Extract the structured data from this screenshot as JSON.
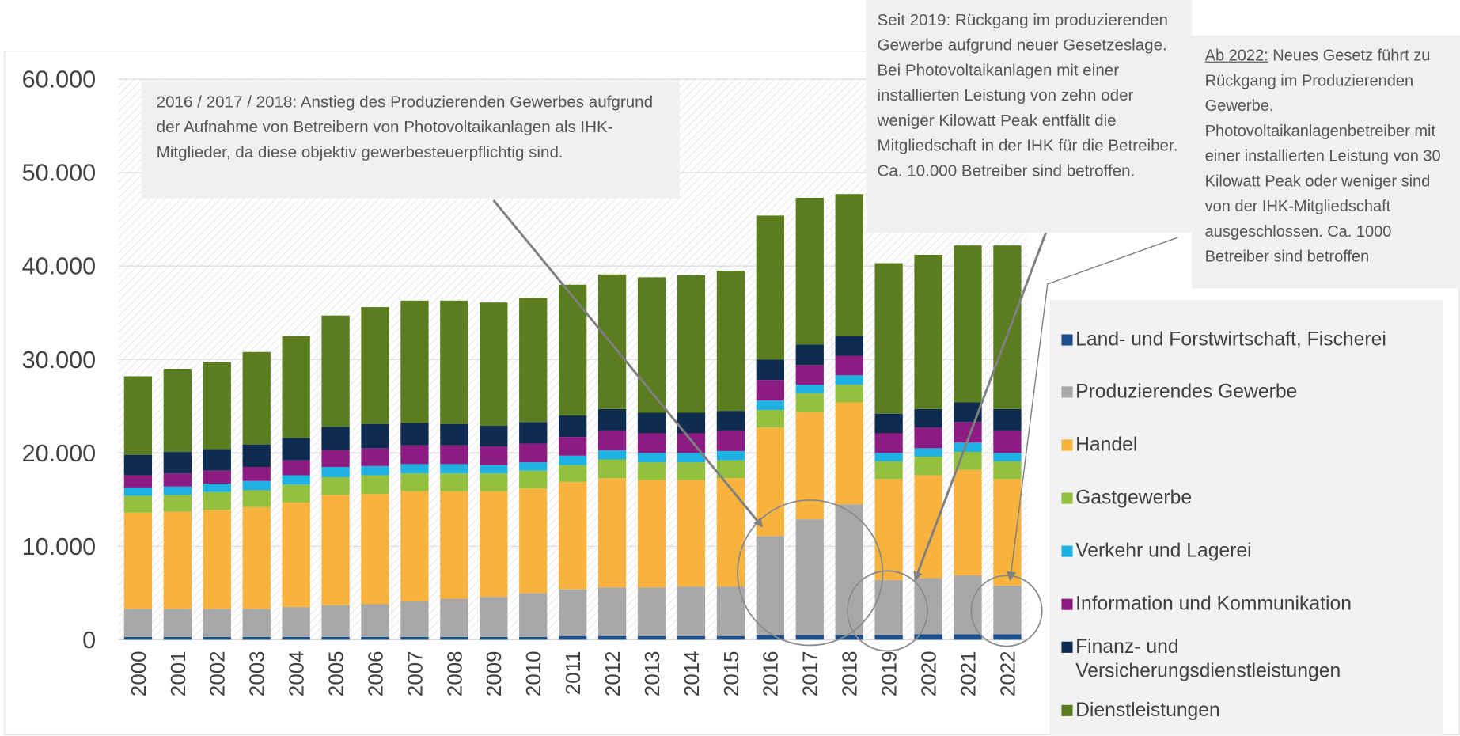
{
  "chart_data": {
    "type": "stacked_bar",
    "categories": [
      "2000",
      "2001",
      "2002",
      "2003",
      "2004",
      "2005",
      "2006",
      "2007",
      "2008",
      "2009",
      "2010",
      "2011",
      "2012",
      "2013",
      "2014",
      "2015",
      "2016",
      "2017",
      "2018",
      "2019",
      "2020",
      "2021",
      "2022"
    ],
    "series": [
      {
        "name": "Land- und Forstwirtschaft, Fischerei",
        "color": "#1c4f8c",
        "values": [
          300,
          300,
          300,
          300,
          300,
          300,
          300,
          300,
          300,
          300,
          300,
          400,
          400,
          400,
          400,
          400,
          500,
          500,
          500,
          500,
          600,
          600,
          600
        ]
      },
      {
        "name": "Produzierendes Gewerbe",
        "color": "#a8a8a8",
        "values": [
          3000,
          3000,
          3000,
          3000,
          3200,
          3400,
          3500,
          3800,
          4100,
          4300,
          4700,
          5000,
          5200,
          5200,
          5300,
          5300,
          10600,
          12400,
          14000,
          5900,
          6000,
          6300,
          5200
        ]
      },
      {
        "name": "Handel",
        "color": "#f7b33d",
        "values": [
          10300,
          10400,
          10600,
          10900,
          11200,
          11800,
          11800,
          11800,
          11500,
          11300,
          11200,
          11500,
          11700,
          11500,
          11400,
          11600,
          11600,
          11500,
          10900,
          10800,
          11000,
          11300,
          11400
        ]
      },
      {
        "name": "Gastgewerbe",
        "color": "#93c13f",
        "values": [
          1800,
          1800,
          1900,
          1800,
          1900,
          1900,
          2000,
          1900,
          1900,
          1900,
          1900,
          1800,
          2000,
          1900,
          1900,
          1900,
          1900,
          2000,
          1900,
          1900,
          2000,
          1900,
          1900
        ]
      },
      {
        "name": "Verkehr und Lagerei",
        "color": "#1fb1e2",
        "values": [
          900,
          900,
          900,
          1000,
          1000,
          1100,
          1000,
          1000,
          1000,
          900,
          900,
          1000,
          1000,
          1000,
          1000,
          1000,
          1000,
          900,
          1000,
          900,
          900,
          1000,
          900
        ]
      },
      {
        "name": "Information und Kommunikation",
        "color": "#8c1c82",
        "values": [
          1300,
          1400,
          1400,
          1500,
          1600,
          1800,
          1900,
          2000,
          2000,
          2000,
          2000,
          2000,
          2100,
          2100,
          2100,
          2200,
          2200,
          2100,
          2100,
          2100,
          2200,
          2200,
          2400
        ]
      },
      {
        "name": "Finanz- und Versicherungsdienstleistungen",
        "color": "#0e2b50",
        "values": [
          2200,
          2300,
          2300,
          2400,
          2400,
          2500,
          2600,
          2400,
          2300,
          2200,
          2300,
          2300,
          2300,
          2200,
          2200,
          2100,
          2200,
          2200,
          2100,
          2100,
          2000,
          2100,
          2300
        ]
      },
      {
        "name": "Dienstleistungen",
        "color": "#5b7c1f",
        "values": [
          8400,
          8900,
          9300,
          9900,
          10900,
          11900,
          12500,
          13100,
          13200,
          13200,
          13300,
          14000,
          14400,
          14500,
          14700,
          15000,
          15400,
          15700,
          15200,
          16100,
          16500,
          16800,
          17500
        ]
      }
    ],
    "ylim": [
      0,
      60000
    ],
    "yticks": [
      0,
      {
        "value": 10000,
        "label": "10.000"
      },
      {
        "value": 20000,
        "label": "20.000"
      },
      {
        "value": 30000,
        "label": "30.000"
      },
      {
        "value": 40000,
        "label": "40.000"
      },
      {
        "value": 50000,
        "label": "50.000"
      },
      {
        "value": 60000,
        "label": "60.000"
      }
    ],
    "grid": true,
    "legend": "right",
    "annotations": [
      {
        "text": "2016 / 2017 / 2018: Anstieg des Produzierenden Gewerbes aufgrund der Aufnahme von Betreibern von Photovoltaikanlagen als IHK-Mitglieder, da diese objektiv gewerbesteuerpflichtig sind."
      },
      {
        "text": "Seit 2019: Rückgang im produzierenden Gewerbe aufgrund neuer Gesetzeslage. Bei Photovoltaikanlagen mit einer installierten Leistung von zehn oder weniger Kilowatt Peak entfällt die Mitgliedschaft in der IHK für die Betreiber. Ca. 10.000 Betreiber sind betroffen."
      },
      {
        "lead": "Ab 2022:",
        "text": " Neues Gesetz führt zu Rückgang im Produzierenden Gewerbe. Photovoltaikanlagenbetreiber mit einer installierten Leistung von 30 Kilowatt Peak oder weniger sind von der IHK-Mitgliedschaft ausgeschlossen. Ca. 1000 Betreiber sind betroffen"
      }
    ]
  }
}
